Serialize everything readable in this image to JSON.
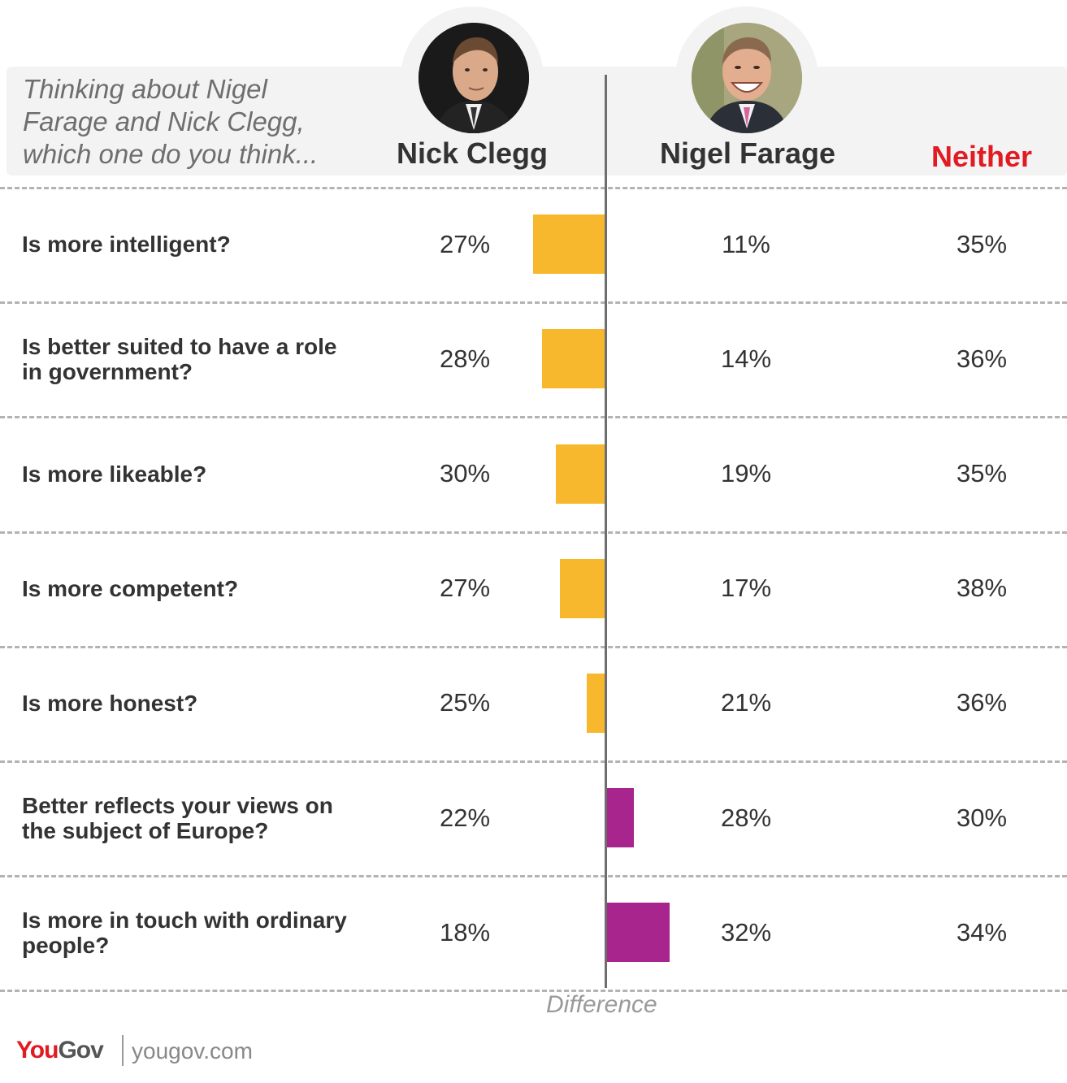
{
  "question": "Thinking about Nigel Farage and Nick Clegg, which one do you think...",
  "columns": {
    "clegg": "Nick Clegg",
    "farage": "Nigel Farage",
    "neither": "Neither"
  },
  "axis_label": "Difference",
  "footer": {
    "logo_you": "You",
    "logo_gov": "Gov",
    "site": "yougov.com"
  },
  "colors": {
    "clegg": "#f8b82e",
    "farage": "#a7258d",
    "neither": "#e11b22"
  },
  "chart_data": {
    "type": "table",
    "rows": [
      {
        "label": "Is more intelligent?",
        "clegg": "27%",
        "farage": "11%",
        "neither": "35%",
        "clegg_value": 27,
        "farage_value": 11
      },
      {
        "label": "Is better suited to have a role in government?",
        "clegg": "28%",
        "farage": "14%",
        "neither": "36%",
        "clegg_value": 28,
        "farage_value": 14
      },
      {
        "label": "Is more likeable?",
        "clegg": "30%",
        "farage": "19%",
        "neither": "35%",
        "clegg_value": 30,
        "farage_value": 19
      },
      {
        "label": "Is more competent?",
        "clegg": "27%",
        "farage": "17%",
        "neither": "38%",
        "clegg_value": 27,
        "farage_value": 17
      },
      {
        "label": "Is more honest?",
        "clegg": "25%",
        "farage": "21%",
        "neither": "36%",
        "clegg_value": 25,
        "farage_value": 21
      },
      {
        "label": "Better reflects your views on the subject of Europe?",
        "clegg": "22%",
        "farage": "28%",
        "neither": "30%",
        "clegg_value": 22,
        "farage_value": 28
      },
      {
        "label": "Is more in touch with ordinary people?",
        "clegg": "18%",
        "farage": "32%",
        "neither": "34%",
        "clegg_value": 18,
        "farage_value": 32
      }
    ]
  }
}
